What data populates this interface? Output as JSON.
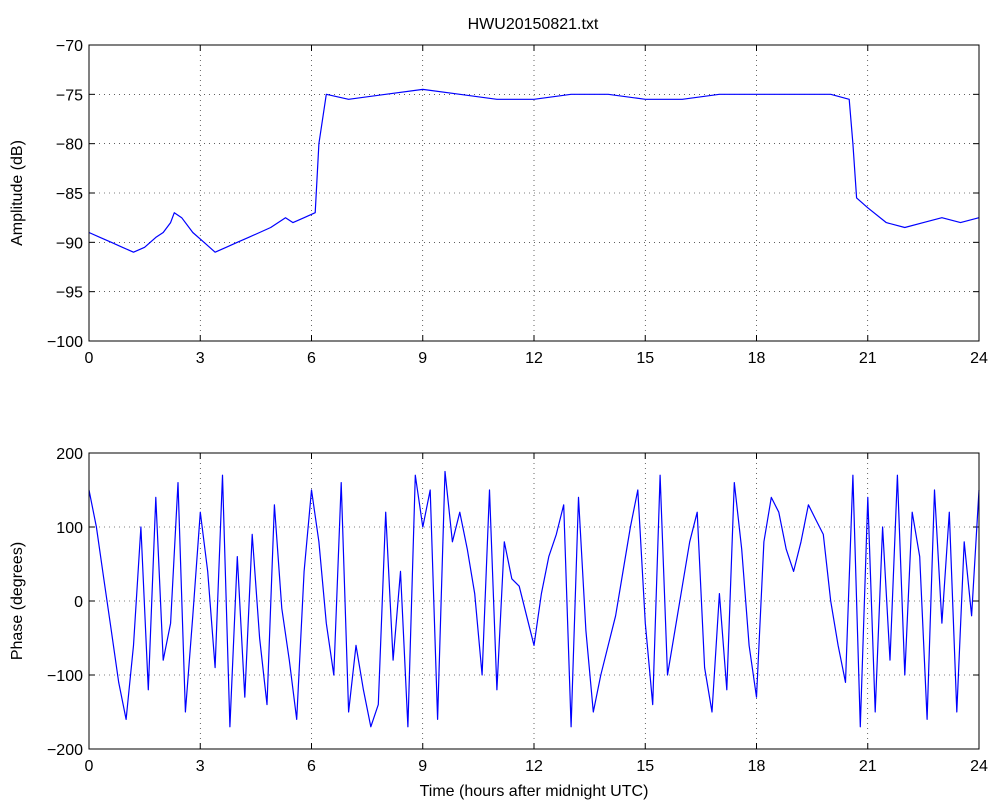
{
  "figure": {
    "title": "HWU20150821.txt",
    "line_color": "#0000ff"
  },
  "chart_data": [
    {
      "type": "line",
      "title": "HWU20150821.txt",
      "xlabel": "",
      "ylabel": "Amplitude (dB)",
      "xlim": [
        0,
        24
      ],
      "ylim": [
        -100,
        -70
      ],
      "xticks": [
        0,
        3,
        6,
        9,
        12,
        15,
        18,
        21,
        24
      ],
      "yticks": [
        -100,
        -95,
        -90,
        -85,
        -80,
        -75,
        -70
      ],
      "grid": true,
      "series": [
        {
          "color": "#0000ff",
          "x": [
            0,
            0.3,
            0.6,
            0.9,
            1.2,
            1.5,
            1.8,
            2.0,
            2.2,
            2.3,
            2.5,
            2.8,
            3.1,
            3.4,
            3.7,
            4.0,
            4.3,
            4.6,
            4.9,
            5.1,
            5.3,
            5.5,
            5.8,
            6.1,
            6.2,
            6.4,
            7,
            8,
            9,
            10,
            11,
            12,
            13,
            14,
            15,
            16,
            17,
            18,
            19,
            20,
            20.5,
            20.6,
            20.7,
            21,
            21.5,
            22,
            22.5,
            23,
            23.5,
            24
          ],
          "y": [
            -89,
            -89.5,
            -90,
            -90.5,
            -91,
            -90.5,
            -89.5,
            -89,
            -88,
            -87,
            -87.5,
            -89,
            -90,
            -91,
            -90.5,
            -90,
            -89.5,
            -89,
            -88.5,
            -88,
            -87.5,
            -88,
            -87.5,
            -87,
            -80,
            -75,
            -75.5,
            -75,
            -74.5,
            -75,
            -75.5,
            -75.5,
            -75,
            -75,
            -75.5,
            -75.5,
            -75,
            -75,
            -75,
            -75,
            -75.5,
            -80,
            -85.5,
            -86.5,
            -88,
            -88.5,
            -88,
            -87.5,
            -88,
            -87.5
          ]
        }
      ]
    },
    {
      "type": "line",
      "title": "",
      "xlabel": "Time (hours after midnight UTC)",
      "ylabel": "Phase (degrees)",
      "xlim": [
        0,
        24
      ],
      "ylim": [
        -200,
        200
      ],
      "xticks": [
        0,
        3,
        6,
        9,
        12,
        15,
        18,
        21,
        24
      ],
      "yticks": [
        -200,
        -100,
        0,
        100,
        200
      ],
      "grid": true,
      "series": [
        {
          "color": "#0000ff",
          "x": [
            0,
            0.2,
            0.4,
            0.6,
            0.8,
            1.0,
            1.2,
            1.4,
            1.6,
            1.8,
            2.0,
            2.2,
            2.4,
            2.6,
            2.8,
            3.0,
            3.2,
            3.4,
            3.6,
            3.8,
            4.0,
            4.2,
            4.4,
            4.6,
            4.8,
            5.0,
            5.2,
            5.4,
            5.6,
            5.8,
            6.0,
            6.2,
            6.4,
            6.6,
            6.8,
            7.0,
            7.2,
            7.4,
            7.6,
            7.8,
            8.0,
            8.2,
            8.4,
            8.6,
            8.8,
            9.0,
            9.2,
            9.4,
            9.6,
            9.8,
            10.0,
            10.2,
            10.4,
            10.6,
            10.8,
            11.0,
            11.2,
            11.4,
            11.6,
            11.8,
            12.0,
            12.2,
            12.4,
            12.6,
            12.8,
            13.0,
            13.2,
            13.4,
            13.6,
            13.8,
            14.0,
            14.2,
            14.4,
            14.6,
            14.8,
            15.0,
            15.2,
            15.4,
            15.6,
            15.8,
            16.0,
            16.2,
            16.4,
            16.6,
            16.8,
            17.0,
            17.2,
            17.4,
            17.6,
            17.8,
            18.0,
            18.2,
            18.4,
            18.6,
            18.8,
            19.0,
            19.2,
            19.4,
            19.6,
            19.8,
            20.0,
            20.2,
            20.4,
            20.6,
            20.8,
            21.0,
            21.2,
            21.4,
            21.6,
            21.8,
            22.0,
            22.2,
            22.4,
            22.6,
            22.8,
            23.0,
            23.2,
            23.4,
            23.6,
            23.8,
            24.0
          ],
          "y": [
            150,
            100,
            30,
            -40,
            -110,
            -160,
            -60,
            100,
            -120,
            140,
            -80,
            -30,
            160,
            -150,
            -20,
            120,
            40,
            -90,
            170,
            -170,
            60,
            -130,
            90,
            -50,
            -140,
            130,
            -10,
            -80,
            -160,
            40,
            150,
            80,
            -30,
            -100,
            160,
            -150,
            -60,
            -120,
            -170,
            -140,
            120,
            -80,
            40,
            -170,
            170,
            100,
            150,
            -160,
            175,
            80,
            120,
            70,
            10,
            -100,
            150,
            -120,
            80,
            30,
            20,
            -20,
            -60,
            10,
            60,
            90,
            130,
            -170,
            140,
            -40,
            -150,
            -100,
            -60,
            -20,
            40,
            100,
            150,
            -30,
            -140,
            170,
            -100,
            -40,
            20,
            80,
            120,
            -90,
            -150,
            10,
            -120,
            160,
            70,
            -60,
            -130,
            80,
            140,
            120,
            70,
            40,
            80,
            130,
            110,
            90,
            0,
            -60,
            -110,
            170,
            -170,
            140,
            -150,
            100,
            -80,
            170,
            -100,
            120,
            60,
            -160,
            150,
            -30,
            120,
            -150,
            80,
            -20,
            150
          ]
        }
      ]
    }
  ]
}
